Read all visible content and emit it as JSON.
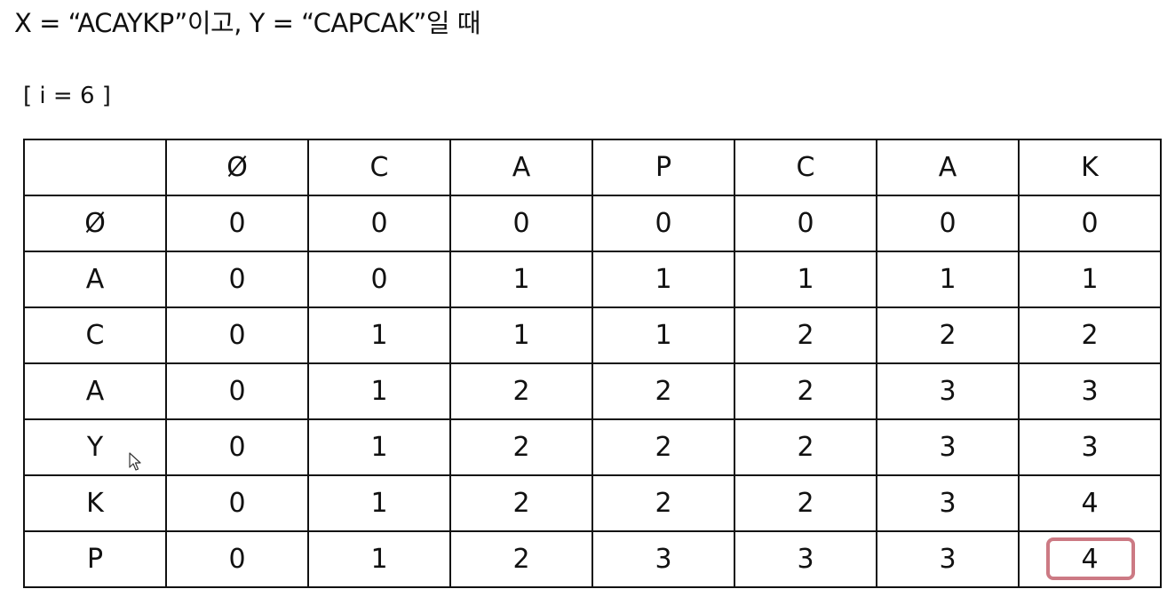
{
  "document": {
    "title": "X = “ACAYKP”이고, Y = “CAPCAK”일 때",
    "iteration_label": "[ i = 6 ]"
  },
  "table": {
    "header": [
      "",
      "Ø",
      "C",
      "A",
      "P",
      "C",
      "A",
      "K"
    ],
    "rows": [
      {
        "label": "Ø",
        "values": [
          "0",
          "0",
          "0",
          "0",
          "0",
          "0",
          "0"
        ]
      },
      {
        "label": "A",
        "values": [
          "0",
          "0",
          "1",
          "1",
          "1",
          "1",
          "1"
        ]
      },
      {
        "label": "C",
        "values": [
          "0",
          "1",
          "1",
          "1",
          "2",
          "2",
          "2"
        ]
      },
      {
        "label": "A",
        "values": [
          "0",
          "1",
          "2",
          "2",
          "2",
          "3",
          "3"
        ]
      },
      {
        "label": "Y",
        "values": [
          "0",
          "1",
          "2",
          "2",
          "2",
          "3",
          "3"
        ]
      },
      {
        "label": "K",
        "values": [
          "0",
          "1",
          "2",
          "2",
          "2",
          "3",
          "4"
        ]
      },
      {
        "label": "P",
        "values": [
          "0",
          "1",
          "2",
          "3",
          "3",
          "3",
          "4"
        ]
      }
    ],
    "highlight_color": "#cc7a84"
  },
  "icons": {
    "cursor": "mouse-pointer-icon"
  }
}
